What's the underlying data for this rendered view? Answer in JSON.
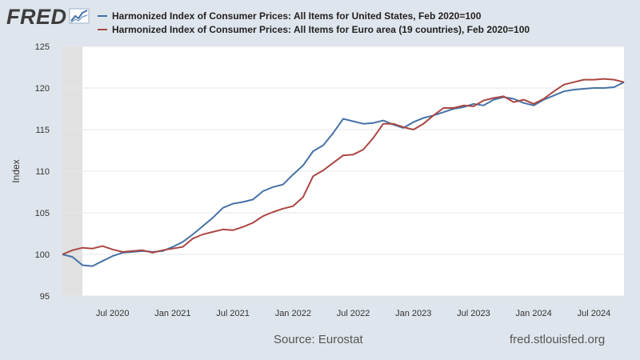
{
  "header": {
    "logo_text": "FRED",
    "logo_icon": "fred-graph-icon"
  },
  "colors": {
    "us": "#4572a7",
    "ea": "#aa4643",
    "recession": "#e1e1e1",
    "grid": "#e6e6e6"
  },
  "footer": {
    "source": "Source: Eurostat",
    "url": "fred.stlouisfed.org"
  },
  "chart_data": {
    "type": "line",
    "ylabel": "Index",
    "ylim": [
      95,
      125
    ],
    "yticks": [
      95,
      100,
      105,
      110,
      115,
      120,
      125
    ],
    "xlim": [
      "2020-02",
      "2024-10"
    ],
    "xticks": [
      {
        "date": "2020-07",
        "label": "Jul 2020"
      },
      {
        "date": "2021-01",
        "label": "Jan 2021"
      },
      {
        "date": "2021-07",
        "label": "Jul 2021"
      },
      {
        "date": "2022-01",
        "label": "Jan 2022"
      },
      {
        "date": "2022-07",
        "label": "Jul 2022"
      },
      {
        "date": "2023-01",
        "label": "Jan 2023"
      },
      {
        "date": "2023-07",
        "label": "Jul 2023"
      },
      {
        "date": "2024-01",
        "label": "Jan 2024"
      },
      {
        "date": "2024-07",
        "label": "Jul 2024"
      }
    ],
    "recession": {
      "start": "2020-02",
      "end": "2020-04"
    },
    "x": [
      "2020-02",
      "2020-03",
      "2020-04",
      "2020-05",
      "2020-06",
      "2020-07",
      "2020-08",
      "2020-09",
      "2020-10",
      "2020-11",
      "2020-12",
      "2021-01",
      "2021-02",
      "2021-03",
      "2021-04",
      "2021-05",
      "2021-06",
      "2021-07",
      "2021-08",
      "2021-09",
      "2021-10",
      "2021-11",
      "2021-12",
      "2022-01",
      "2022-02",
      "2022-03",
      "2022-04",
      "2022-05",
      "2022-06",
      "2022-07",
      "2022-08",
      "2022-09",
      "2022-10",
      "2022-11",
      "2022-12",
      "2023-01",
      "2023-02",
      "2023-03",
      "2023-04",
      "2023-05",
      "2023-06",
      "2023-07",
      "2023-08",
      "2023-09",
      "2023-10",
      "2023-11",
      "2023-12",
      "2024-01",
      "2024-02",
      "2024-03",
      "2024-04",
      "2024-05",
      "2024-06",
      "2024-07",
      "2024-08",
      "2024-09",
      "2024-10"
    ],
    "series": [
      {
        "name": "Harmonized Index of Consumer Prices: All Items for United States, Feb 2020=100",
        "values": [
          100.0,
          99.7,
          98.7,
          98.6,
          99.2,
          99.8,
          100.2,
          100.3,
          100.4,
          100.3,
          100.4,
          100.9,
          101.5,
          102.4,
          103.4,
          104.4,
          105.6,
          106.1,
          106.3,
          106.6,
          107.6,
          108.1,
          108.4,
          109.6,
          110.7,
          112.4,
          113.1,
          114.6,
          116.3,
          116.0,
          115.7,
          115.8,
          116.1,
          115.6,
          115.2,
          115.9,
          116.4,
          116.7,
          117.1,
          117.5,
          117.7,
          118.1,
          117.9,
          118.6,
          118.9,
          118.7,
          118.2,
          117.9,
          118.6,
          119.1,
          119.6,
          119.8,
          119.9,
          120.0,
          120.0,
          120.1,
          120.7
        ]
      },
      {
        "name": "Harmonized Index of Consumer Prices: All Items for Euro area (19 countries), Feb 2020=100",
        "values": [
          100.0,
          100.5,
          100.8,
          100.7,
          101.0,
          100.6,
          100.3,
          100.4,
          100.5,
          100.2,
          100.5,
          100.7,
          100.9,
          101.9,
          102.4,
          102.7,
          103.0,
          102.9,
          103.3,
          103.8,
          104.6,
          105.1,
          105.5,
          105.8,
          106.9,
          109.4,
          110.1,
          111.0,
          111.9,
          112.0,
          112.6,
          114.0,
          115.7,
          115.7,
          115.3,
          115.0,
          115.7,
          116.7,
          117.6,
          117.6,
          117.9,
          117.8,
          118.5,
          118.8,
          119.0,
          118.3,
          118.6,
          118.1,
          118.7,
          119.6,
          120.4,
          120.7,
          121.0,
          121.0,
          121.1,
          121.0,
          120.7
        ]
      }
    ]
  }
}
